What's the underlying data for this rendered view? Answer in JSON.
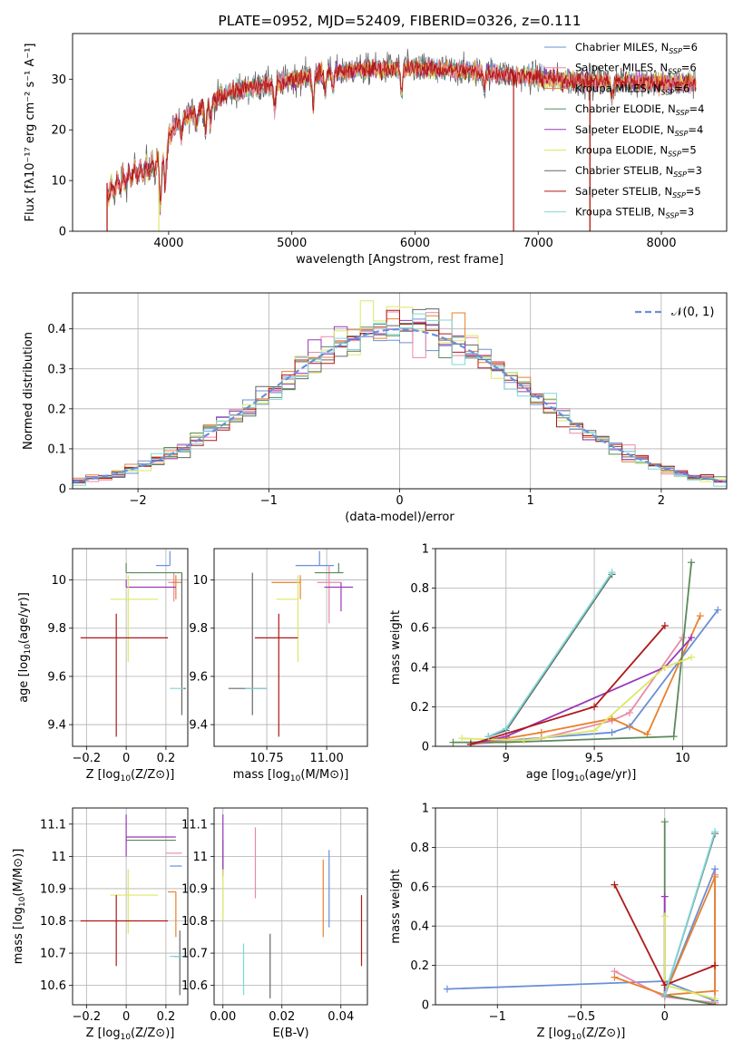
{
  "colors": {
    "Chabrier MILES": "#6a8fd8",
    "Salpeter MILES": "#e98aa6",
    "Kroupa MILES": "#e8812c",
    "Chabrier ELODIE": "#5a8a5a",
    "Salpeter ELODIE": "#9a38b8",
    "Kroupa ELODIE": "#dce866",
    "Chabrier STELIB": "#666666",
    "Salpeter STELIB": "#b01818",
    "Kroupa STELIB": "#7fd8d8"
  },
  "chart_data": [
    {
      "type": "line",
      "title": "PLATE=0952, MJD=52409, FIBERID=0326, z=0.111",
      "xlabel": "wavelength [Angstrom, rest frame]",
      "ylabel": "Flux [fλ10⁻¹⁷ erg cm⁻² s⁻¹ A⁻¹]",
      "xlim": [
        3220,
        8530
      ],
      "ylim": [
        0,
        39
      ],
      "xticks": [
        4000,
        5000,
        6000,
        7000,
        8000
      ],
      "yticks": [
        0,
        10,
        20,
        30
      ],
      "legend_position": "top-right",
      "legend": [
        "Chabrier MILES, N_SSP=6",
        "Salpeter MILES, N_SSP=6",
        "Kroupa MILES, N_SSP=6",
        "Chabrier ELODIE, N_SSP=4",
        "Salpeter ELODIE, N_SSP=4",
        "Kroupa ELODIE, N_SSP=5",
        "Chabrier STELIB, N_SSP=3",
        "Salpeter STELIB, N_SSP=5",
        "Kroupa STELIB, N_SSP=3"
      ],
      "continuum": {
        "wavelength": [
          3500,
          3700,
          3900,
          4000,
          4100,
          4300,
          4500,
          4700,
          4850,
          5000,
          5200,
          5500,
          5800,
          6000,
          6300,
          6600,
          6800,
          7000,
          7200,
          7400,
          7700,
          8000,
          8250
        ],
        "flux": [
          9.5,
          13,
          15,
          19,
          22,
          25,
          27.5,
          28.5,
          29,
          30,
          31,
          31.8,
          32.2,
          32.2,
          31.8,
          31.3,
          30.8,
          30.3,
          29.8,
          29.6,
          29.5,
          29.3,
          29.2
        ]
      },
      "grid": false
    },
    {
      "type": "line",
      "xlabel": "(data-model)/error",
      "ylabel": "Normed distribution",
      "xlim": [
        -2.5,
        2.5
      ],
      "ylim": [
        0,
        0.49
      ],
      "xticks": [
        -2,
        -1,
        0,
        1,
        2
      ],
      "yticks": [
        0.0,
        0.1,
        0.2,
        0.3,
        0.4
      ],
      "legend": [
        "N(0, 1)"
      ],
      "legend_position": "top-right",
      "histogram_bin_width": 0.1,
      "grid": true
    },
    {
      "type": "scatter",
      "xlabel": "Z [log10(Z/Z⊙)]",
      "ylabel": "age  [log10(age/yr)]",
      "xlim": [
        -0.27,
        0.31
      ],
      "ylim": [
        9.31,
        10.13
      ],
      "xticks": [
        -0.2,
        0.0,
        0.2
      ],
      "yticks": [
        9.4,
        9.6,
        9.8,
        10.0
      ],
      "grid": true,
      "points": [
        {
          "name": "Chabrier MILES",
          "x": 0.22,
          "y": 10.06,
          "xerr": [
            0.07,
            0.0
          ],
          "yerr": [
            0.0,
            0.06
          ]
        },
        {
          "name": "Salpeter MILES",
          "x": 0.24,
          "y": 9.99,
          "xerr": [
            0.03,
            0.0
          ],
          "yerr": [
            0.08,
            0.04
          ]
        },
        {
          "name": "Kroupa MILES",
          "x": 0.25,
          "y": 9.99,
          "xerr": [
            0.02,
            0.03
          ],
          "yerr": [
            0.07,
            0.03
          ]
        },
        {
          "name": "Chabrier ELODIE",
          "x": 0.0,
          "y": 10.03,
          "xerr": [
            0.0,
            0.28
          ],
          "yerr": [
            0.0,
            0.04
          ]
        },
        {
          "name": "Salpeter ELODIE",
          "x": 0.0,
          "y": 9.97,
          "xerr": [
            0.0,
            0.25
          ],
          "yerr": [
            0.0,
            0.03
          ]
        },
        {
          "name": "Kroupa ELODIE",
          "x": 0.01,
          "y": 9.92,
          "xerr": [
            0.09,
            0.15
          ],
          "yerr": [
            0.26,
            0.1
          ]
        },
        {
          "name": "Chabrier STELIB",
          "x": 0.28,
          "y": 9.55,
          "xerr": [
            0.0,
            0.02
          ],
          "yerr": [
            0.11,
            0.48
          ]
        },
        {
          "name": "Salpeter STELIB",
          "x": -0.05,
          "y": 9.76,
          "xerr": [
            0.18,
            0.26
          ],
          "yerr": [
            0.41,
            0.1
          ]
        },
        {
          "name": "Kroupa STELIB",
          "x": 0.27,
          "y": 9.55,
          "xerr": [
            0.05,
            0.02
          ],
          "yerr": [
            0.0,
            0.0
          ]
        }
      ]
    },
    {
      "type": "scatter",
      "xlabel": "mass [log10(M/M⊙)]",
      "ylabel": "",
      "xlim": [
        10.53,
        11.17
      ],
      "ylim": [
        9.31,
        10.13
      ],
      "xticks": [
        10.75,
        11.0
      ],
      "xtick_labels": [
        "10.75",
        "11.00"
      ],
      "yticks": [
        9.4,
        9.6,
        9.8,
        10.0
      ],
      "grid": true,
      "points": [
        {
          "name": "Chabrier MILES",
          "x": 10.97,
          "y": 10.06,
          "xerr": [
            0.1,
            0.06
          ],
          "yerr": [
            0.0,
            0.06
          ]
        },
        {
          "name": "Salpeter MILES",
          "x": 11.01,
          "y": 9.99,
          "xerr": [
            0.05,
            0.05
          ],
          "yerr": [
            0.17,
            0.07
          ]
        },
        {
          "name": "Kroupa MILES",
          "x": 10.89,
          "y": 9.99,
          "xerr": [
            0.12,
            0.0
          ],
          "yerr": [
            0.07,
            0.03
          ]
        },
        {
          "name": "Chabrier ELODIE",
          "x": 11.05,
          "y": 10.03,
          "xerr": [
            0.1,
            0.02
          ],
          "yerr": [
            0.0,
            0.04
          ]
        },
        {
          "name": "Salpeter ELODIE",
          "x": 11.06,
          "y": 9.97,
          "xerr": [
            0.07,
            0.05
          ],
          "yerr": [
            0.1,
            0.02
          ]
        },
        {
          "name": "Kroupa ELODIE",
          "x": 10.88,
          "y": 9.92,
          "xerr": [
            0.09,
            0.0
          ],
          "yerr": [
            0.26,
            0.1
          ]
        },
        {
          "name": "Chabrier STELIB",
          "x": 10.69,
          "y": 9.55,
          "xerr": [
            0.1,
            0.06
          ],
          "yerr": [
            0.11,
            0.48
          ]
        },
        {
          "name": "Salpeter STELIB",
          "x": 10.8,
          "y": 9.76,
          "xerr": [
            0.1,
            0.08
          ],
          "yerr": [
            0.41,
            0.1
          ]
        },
        {
          "name": "Kroupa STELIB",
          "x": 10.69,
          "y": 9.55,
          "xerr": [
            0.03,
            0.06
          ],
          "yerr": [
            0.0,
            0.0
          ]
        }
      ]
    },
    {
      "type": "line",
      "xlabel": "age  [log10(age/yr)]",
      "ylabel": "mass weight",
      "xlim": [
        8.6,
        10.25
      ],
      "ylim": [
        0.0,
        1.0
      ],
      "xticks": [
        9.0,
        9.5,
        10.0
      ],
      "yticks": [
        0.0,
        0.2,
        0.4,
        0.6,
        0.8,
        1.0
      ],
      "grid": true,
      "series": [
        {
          "name": "Chabrier MILES",
          "x": [
            8.8,
            9.0,
            9.6,
            9.7,
            10.2
          ],
          "y": [
            0.02,
            0.03,
            0.07,
            0.1,
            0.69
          ]
        },
        {
          "name": "Salpeter MILES",
          "x": [
            8.8,
            9.2,
            9.6,
            9.7,
            10.0
          ],
          "y": [
            0.01,
            0.04,
            0.13,
            0.17,
            0.55
          ]
        },
        {
          "name": "Kroupa MILES",
          "x": [
            8.8,
            9.2,
            9.6,
            9.8,
            10.1
          ],
          "y": [
            0.01,
            0.07,
            0.14,
            0.06,
            0.66
          ]
        },
        {
          "name": "Chabrier ELODIE",
          "x": [
            8.7,
            9.0,
            9.95,
            10.05
          ],
          "y": [
            0.02,
            0.02,
            0.05,
            0.93
          ]
        },
        {
          "name": "Salpeter ELODIE",
          "x": [
            8.8,
            9.0,
            9.9,
            10.05
          ],
          "y": [
            0.01,
            0.05,
            0.4,
            0.55
          ]
        },
        {
          "name": "Kroupa ELODIE",
          "x": [
            8.75,
            9.1,
            9.5,
            9.9,
            10.05
          ],
          "y": [
            0.04,
            0.03,
            0.08,
            0.4,
            0.45
          ]
        },
        {
          "name": "Chabrier STELIB",
          "x": [
            8.9,
            9.0,
            9.6
          ],
          "y": [
            0.05,
            0.08,
            0.87
          ]
        },
        {
          "name": "Salpeter STELIB",
          "x": [
            8.8,
            9.5,
            9.9
          ],
          "y": [
            0.01,
            0.2,
            0.61
          ]
        },
        {
          "name": "Kroupa STELIB",
          "x": [
            8.9,
            9.0,
            9.6
          ],
          "y": [
            0.05,
            0.09,
            0.88
          ]
        }
      ]
    },
    {
      "type": "scatter",
      "xlabel": "Z [log10(Z/Z⊙)]",
      "ylabel": "mass [log10(M/M⊙)]",
      "xlim": [
        -0.27,
        0.31
      ],
      "ylim": [
        10.54,
        11.15
      ],
      "xticks": [
        -0.2,
        0.0,
        0.2
      ],
      "yticks": [
        10.6,
        10.7,
        10.8,
        10.9,
        11.0,
        11.1
      ],
      "grid": true,
      "points": [
        {
          "name": "Chabrier MILES",
          "x": 0.22,
          "y": 10.97,
          "xerr": [
            0.0,
            0.06
          ],
          "yerr": [
            0.0,
            0.0
          ]
        },
        {
          "name": "Salpeter MILES",
          "x": 0.24,
          "y": 11.01,
          "xerr": [
            0.04,
            0.04
          ],
          "yerr": [
            0.0,
            0.0
          ]
        },
        {
          "name": "Kroupa MILES",
          "x": 0.25,
          "y": 10.89,
          "xerr": [
            0.04,
            0.0
          ],
          "yerr": [
            0.14,
            0.0
          ]
        },
        {
          "name": "Chabrier ELODIE",
          "x": 0.0,
          "y": 11.05,
          "xerr": [
            0.0,
            0.25
          ],
          "yerr": [
            0.0,
            0.0
          ]
        },
        {
          "name": "Salpeter ELODIE",
          "x": 0.0,
          "y": 11.06,
          "xerr": [
            0.0,
            0.25
          ],
          "yerr": [
            0.06,
            0.07
          ]
        },
        {
          "name": "Kroupa ELODIE",
          "x": 0.01,
          "y": 10.88,
          "xerr": [
            0.09,
            0.15
          ],
          "yerr": [
            0.12,
            0.08
          ]
        },
        {
          "name": "Chabrier STELIB",
          "x": 0.27,
          "y": 10.69,
          "xerr": [
            0.03,
            0.0
          ],
          "yerr": [
            0.12,
            0.08
          ]
        },
        {
          "name": "Salpeter STELIB",
          "x": -0.05,
          "y": 10.8,
          "xerr": [
            0.18,
            0.26
          ],
          "yerr": [
            0.14,
            0.08
          ]
        },
        {
          "name": "Kroupa STELIB",
          "x": 0.27,
          "y": 10.69,
          "xerr": [
            0.05,
            0.02
          ],
          "yerr": [
            0.0,
            0.0
          ]
        }
      ]
    },
    {
      "type": "scatter",
      "xlabel": "E(B-V)",
      "ylabel": "",
      "xlim": [
        -0.003,
        0.049
      ],
      "ylim": [
        10.54,
        11.15
      ],
      "xticks": [
        0.0,
        0.02,
        0.04
      ],
      "xtick_labels": [
        "0.00",
        "0.02",
        "0.04"
      ],
      "yticks": [
        10.6,
        10.7,
        10.8,
        10.9,
        11.0,
        11.1
      ],
      "grid": true,
      "points": [
        {
          "name": "Chabrier MILES",
          "x": 0.036,
          "y": 10.9,
          "xerr": [
            0.0,
            0.0
          ],
          "yerr": [
            0.12,
            0.12
          ]
        },
        {
          "name": "Salpeter MILES",
          "x": 0.011,
          "y": 10.98,
          "xerr": [
            0.0,
            0.0
          ],
          "yerr": [
            0.11,
            0.11
          ]
        },
        {
          "name": "Kroupa MILES",
          "x": 0.034,
          "y": 10.87,
          "xerr": [
            0.0,
            0.0
          ],
          "yerr": [
            0.12,
            0.12
          ]
        },
        {
          "name": "Chabrier ELODIE",
          "x": 0.0,
          "y": 11.0,
          "xerr": [
            0.0,
            0.0
          ],
          "yerr": [
            0.05,
            0.05
          ]
        },
        {
          "name": "Salpeter ELODIE",
          "x": 0.0,
          "y": 11.04,
          "xerr": [
            0.0,
            0.0
          ],
          "yerr": [
            0.1,
            0.09
          ]
        },
        {
          "name": "Kroupa ELODIE",
          "x": 0.0,
          "y": 10.88,
          "xerr": [
            0.0,
            0.0
          ],
          "yerr": [
            0.08,
            0.08
          ]
        },
        {
          "name": "Chabrier STELIB",
          "x": 0.016,
          "y": 10.66,
          "xerr": [
            0.0,
            0.0
          ],
          "yerr": [
            0.1,
            0.1
          ]
        },
        {
          "name": "Salpeter STELIB",
          "x": 0.047,
          "y": 10.77,
          "xerr": [
            0.0,
            0.0
          ],
          "yerr": [
            0.11,
            0.11
          ]
        },
        {
          "name": "Kroupa STELIB",
          "x": 0.007,
          "y": 10.65,
          "xerr": [
            0.0,
            0.0
          ],
          "yerr": [
            0.08,
            0.08
          ]
        }
      ]
    },
    {
      "type": "line",
      "xlabel": "Z [log10(Z/Z⊙)]",
      "ylabel": "mass weight",
      "xlim": [
        -1.37,
        0.37
      ],
      "ylim": [
        0.0,
        1.0
      ],
      "xticks": [
        -1.0,
        -0.5,
        0.0
      ],
      "yticks": [
        0.0,
        0.2,
        0.4,
        0.6,
        0.8,
        1.0
      ],
      "grid": true,
      "series": [
        {
          "name": "Chabrier MILES",
          "x": [
            -1.3,
            0.0,
            0.3,
            0.3,
            0.0
          ],
          "y": [
            0.08,
            0.12,
            0.02,
            0.69,
            0.05
          ]
        },
        {
          "name": "Salpeter MILES",
          "x": [
            -0.3,
            0.0,
            0.3,
            0.3
          ],
          "y": [
            0.17,
            0.04,
            0.01,
            0.66
          ]
        },
        {
          "name": "Kroupa MILES",
          "x": [
            -0.3,
            0.0,
            0.3,
            0.3,
            0.0
          ],
          "y": [
            0.14,
            0.05,
            0.07,
            0.65,
            0.05
          ]
        },
        {
          "name": "Chabrier ELODIE",
          "x": [
            0.0,
            0.0,
            0.3
          ],
          "y": [
            0.93,
            0.05,
            0.0
          ]
        },
        {
          "name": "Salpeter ELODIE",
          "x": [
            0.0,
            0.0
          ],
          "y": [
            0.55,
            0.05
          ]
        },
        {
          "name": "Kroupa ELODIE",
          "x": [
            0.0,
            0.0,
            0.3
          ],
          "y": [
            0.45,
            0.1,
            0.03
          ]
        },
        {
          "name": "Chabrier STELIB",
          "x": [
            0.0,
            0.3
          ],
          "y": [
            0.05,
            0.87
          ]
        },
        {
          "name": "Salpeter STELIB",
          "x": [
            -0.3,
            0.0,
            0.3
          ],
          "y": [
            0.61,
            0.1,
            0.2
          ]
        },
        {
          "name": "Kroupa STELIB",
          "x": [
            0.0,
            0.3
          ],
          "y": [
            0.05,
            0.88
          ]
        }
      ]
    }
  ]
}
